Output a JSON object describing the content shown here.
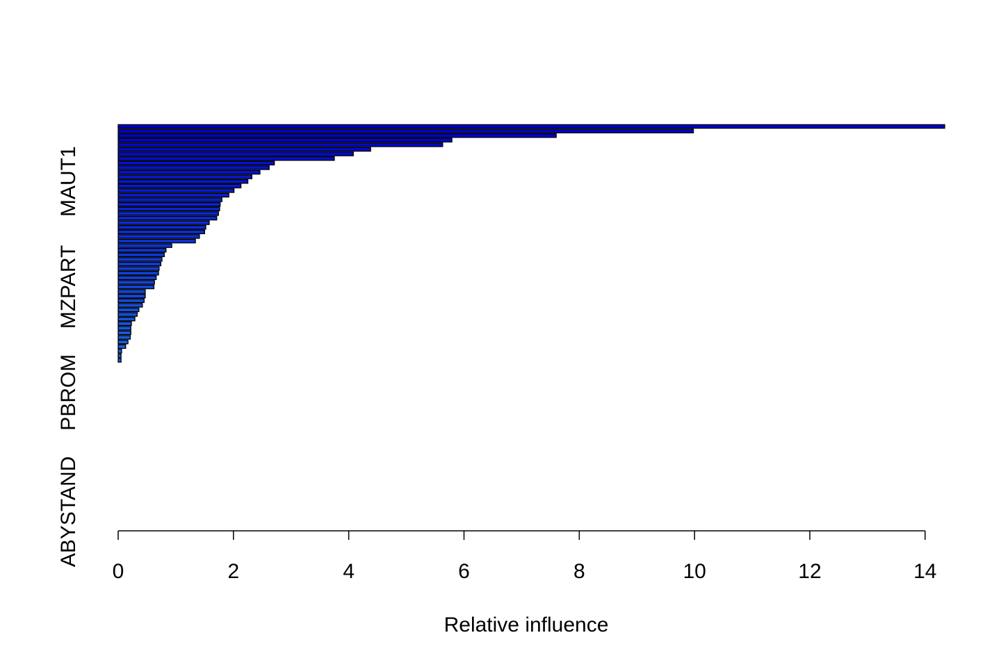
{
  "chart_data": {
    "type": "barh",
    "xlabel": "Relative influence",
    "categories": [
      null,
      null,
      null,
      null,
      null,
      null,
      null,
      null,
      null,
      null,
      null,
      null,
      "MAUT1",
      null,
      null,
      null,
      null,
      null,
      null,
      null,
      null,
      null,
      null,
      null,
      null,
      null,
      null,
      null,
      null,
      null,
      null,
      null,
      null,
      null,
      null,
      "MZPART",
      null,
      null,
      null,
      null,
      null,
      null,
      null,
      null,
      null,
      null,
      null,
      null,
      null,
      null,
      null,
      null,
      null,
      null,
      null,
      null,
      null,
      null,
      "PBROM",
      null,
      null,
      null,
      null,
      null,
      null,
      null,
      null,
      null,
      null,
      null,
      null,
      null,
      null,
      null,
      null,
      null,
      null,
      null,
      null,
      null,
      null,
      null,
      null,
      null,
      "ABYSTAND"
    ],
    "values": [
      14.34,
      9.98,
      7.6,
      5.79,
      5.63,
      4.38,
      4.08,
      3.75,
      2.71,
      2.62,
      2.46,
      2.32,
      2.25,
      2.13,
      2.01,
      1.92,
      1.8,
      1.77,
      1.76,
      1.74,
      1.71,
      1.58,
      1.52,
      1.5,
      1.41,
      1.34,
      0.93,
      0.83,
      0.8,
      0.76,
      0.74,
      0.71,
      0.7,
      0.66,
      0.63,
      0.62,
      0.47,
      0.47,
      0.45,
      0.42,
      0.36,
      0.33,
      0.29,
      0.23,
      0.22,
      0.22,
      0.21,
      0.17,
      0.13,
      0.06,
      0.05,
      0.05,
      0,
      0,
      0,
      0,
      0,
      0,
      0,
      0,
      0,
      0,
      0,
      0,
      0,
      0,
      0,
      0,
      0,
      0,
      0,
      0,
      0,
      0,
      0,
      0,
      0,
      0,
      0,
      0,
      0,
      0,
      0,
      0,
      0
    ],
    "color_gradient": [
      "#0000c8",
      "#2aa6ee"
    ],
    "xlim": [
      0,
      14.34
    ],
    "xticks": [
      0,
      2,
      4,
      6,
      8,
      10,
      12,
      14
    ]
  }
}
